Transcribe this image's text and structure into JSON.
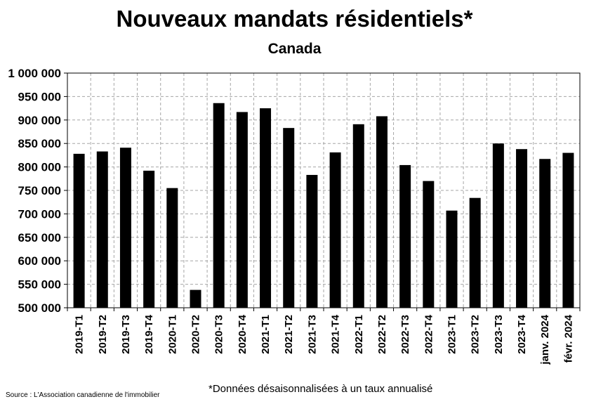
{
  "chart_data": {
    "type": "bar",
    "title": "Nouveaux mandats résidentiels*",
    "subtitle": "Canada",
    "xlabel": "",
    "ylabel": "",
    "ylim": [
      500000,
      1000000
    ],
    "yticks": [
      "500 000",
      "550 000",
      "600 000",
      "650 000",
      "700 000",
      "750 000",
      "800 000",
      "850 000",
      "900 000",
      "950 000",
      "1 000 000"
    ],
    "grid": true,
    "categories": [
      "2019-T1",
      "2019-T2",
      "2019-T3",
      "2019-T4",
      "2020-T1",
      "2020-T2",
      "2020-T3",
      "2020-T4",
      "2021-T1",
      "2021-T2",
      "2021-T3",
      "2021-T4",
      "2022-T1",
      "2022-T2",
      "2022-T3",
      "2022-T4",
      "2023-T1",
      "2023-T2",
      "2023-T3",
      "2023-T4",
      "janv. 2024",
      "févr. 2024"
    ],
    "values": [
      828000,
      833000,
      841000,
      792000,
      755000,
      538000,
      936000,
      917000,
      925000,
      883000,
      783000,
      831000,
      891000,
      908000,
      804000,
      770000,
      707000,
      734000,
      850000,
      838000,
      817000,
      830000
    ],
    "bar_color": "#000000",
    "note": "*Données désaisonnalisées à un taux annualisé",
    "source": "Source : L'Association canadienne de l'immobilier"
  }
}
